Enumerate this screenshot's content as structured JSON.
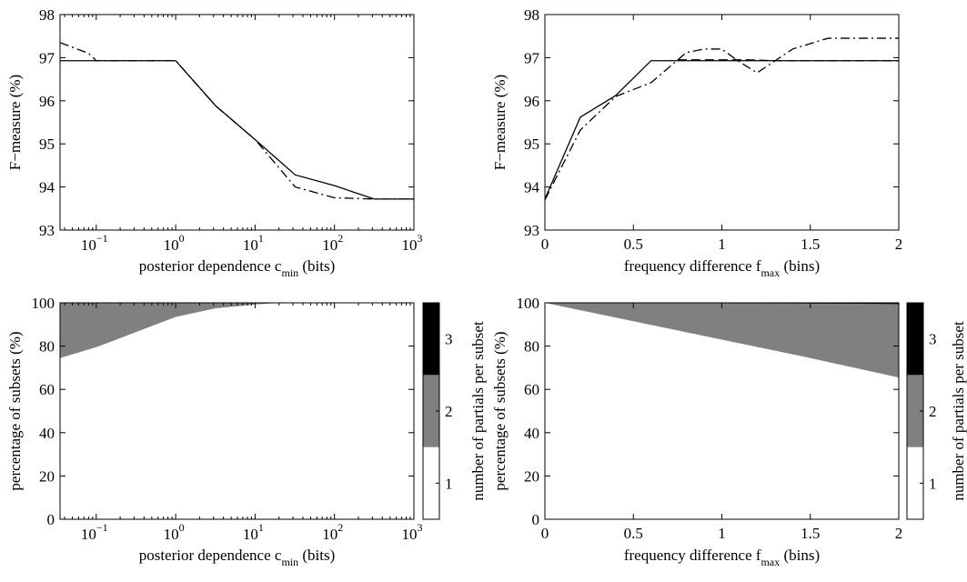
{
  "colors": {
    "frame": "#000000",
    "gray": "#808080",
    "black": "#000000",
    "white": "#ffffff"
  },
  "chart_data": [
    {
      "type": "line",
      "id": "tl",
      "xscale": "log",
      "xlim": [
        0.035,
        1000
      ],
      "ylim": [
        93,
        98
      ],
      "xticks": [
        0.1,
        1,
        10,
        100,
        1000
      ],
      "xtick_labels": [
        {
          "base": "10",
          "exp": "−1"
        },
        {
          "base": "10",
          "exp": "0"
        },
        {
          "base": "10",
          "exp": "1"
        },
        {
          "base": "10",
          "exp": "2"
        },
        {
          "base": "10",
          "exp": "3"
        }
      ],
      "yticks": [
        93,
        94,
        95,
        96,
        97,
        98
      ],
      "ytick_labels": [
        "93",
        "94",
        "95",
        "96",
        "97",
        "98"
      ],
      "xlabel": {
        "main": "posterior dependence c",
        "sub": "min",
        "tail": " (bits)"
      },
      "ylabel": "F−measure (%)",
      "series": [
        {
          "style": "solid",
          "x": [
            0.035,
            1,
            3.2,
            10,
            32,
            100,
            316,
            1000
          ],
          "y": [
            96.93,
            96.93,
            95.88,
            95.1,
            94.28,
            94.03,
            93.72,
            93.72
          ]
        },
        {
          "style": "dashdot",
          "x": [
            0.035,
            0.08,
            0.1,
            1,
            3.2,
            10,
            32,
            100,
            316,
            1000
          ],
          "y": [
            97.35,
            97.1,
            96.93,
            96.93,
            95.88,
            95.1,
            94.0,
            93.75,
            93.72,
            93.72
          ]
        }
      ]
    },
    {
      "type": "line",
      "id": "tr",
      "xscale": "linear",
      "xlim": [
        0,
        2
      ],
      "ylim": [
        93,
        98
      ],
      "xticks": [
        0,
        0.5,
        1,
        1.5,
        2
      ],
      "xtick_labels": [
        "0",
        "0.5",
        "1",
        "1.5",
        "2"
      ],
      "yticks": [
        93,
        94,
        95,
        96,
        97,
        98
      ],
      "ytick_labels": [
        "93",
        "94",
        "95",
        "96",
        "97",
        "98"
      ],
      "xlabel": {
        "main": "frequency difference f",
        "sub": "max",
        "tail": " (bins)"
      },
      "ylabel": "F−measure (%)",
      "series": [
        {
          "style": "solid",
          "x": [
            0,
            0.2,
            0.4,
            0.6,
            0.8,
            1.0,
            1.2,
            1.4,
            1.6,
            1.8,
            2.0
          ],
          "y": [
            93.72,
            95.62,
            96.12,
            96.93,
            96.93,
            96.93,
            96.93,
            96.93,
            96.93,
            96.93,
            96.93
          ]
        },
        {
          "style": "dashed",
          "x": [
            0.75,
            1.15,
            1.3,
            1.95,
            2.0
          ],
          "y": [
            96.95,
            96.95,
            96.93,
            96.93,
            96.93
          ]
        },
        {
          "style": "dashdot",
          "x": [
            0,
            0.2,
            0.4,
            0.6,
            0.8,
            0.9,
            1.0,
            1.1,
            1.2,
            1.4,
            1.6,
            1.8,
            2.0
          ],
          "y": [
            93.7,
            95.32,
            96.1,
            96.42,
            97.12,
            97.2,
            97.2,
            96.9,
            96.65,
            97.2,
            97.45,
            97.45,
            97.45
          ]
        }
      ]
    },
    {
      "type": "area",
      "id": "bl",
      "xscale": "log",
      "xlim": [
        0.035,
        1000
      ],
      "ylim": [
        0,
        100
      ],
      "xticks": [
        0.1,
        1,
        10,
        100,
        1000
      ],
      "xtick_labels": [
        {
          "base": "10",
          "exp": "−1"
        },
        {
          "base": "10",
          "exp": "0"
        },
        {
          "base": "10",
          "exp": "1"
        },
        {
          "base": "10",
          "exp": "2"
        },
        {
          "base": "10",
          "exp": "3"
        }
      ],
      "yticks": [
        0,
        20,
        40,
        60,
        80,
        100
      ],
      "ytick_labels": [
        "0",
        "20",
        "40",
        "60",
        "80",
        "100"
      ],
      "xlabel": {
        "main": "posterior dependence c",
        "sub": "min",
        "tail": " (bits)"
      },
      "ylabel": "percentage of subsets (%)",
      "series": [
        {
          "name": "1",
          "x": [
            0.035,
            0.1,
            1,
            3.2,
            10,
            20,
            1000
          ],
          "y": [
            74.5,
            79.5,
            93.5,
            97.5,
            99.2,
            100,
            100
          ]
        },
        {
          "name": "2",
          "x": [
            0.035,
            1000
          ],
          "y": [
            25.5,
            0
          ]
        },
        {
          "name": "3",
          "x": [
            0.035,
            1000
          ],
          "y": [
            0,
            0
          ]
        }
      ],
      "colorbar": {
        "label": "number of partials per subset",
        "levels": [
          "1",
          "2",
          "3"
        ]
      }
    },
    {
      "type": "area",
      "id": "br",
      "xscale": "linear",
      "xlim": [
        0,
        2
      ],
      "ylim": [
        0,
        100
      ],
      "xticks": [
        0,
        0.5,
        1,
        1.5,
        2
      ],
      "xtick_labels": [
        "0",
        "0.5",
        "1",
        "1.5",
        "2"
      ],
      "yticks": [
        0,
        20,
        40,
        60,
        80,
        100
      ],
      "ytick_labels": [
        "0",
        "20",
        "40",
        "60",
        "80",
        "100"
      ],
      "xlabel": {
        "main": "frequency difference f",
        "sub": "max",
        "tail": " (bins)"
      },
      "ylabel": "percentage of subsets (%)",
      "series": [
        {
          "name": "1",
          "x": [
            0,
            0.5,
            1.0,
            1.5,
            2.0
          ],
          "y": [
            100,
            91.5,
            83,
            74.5,
            65.5
          ]
        },
        {
          "name": "3",
          "x": [
            0,
            1.0,
            1.8,
            2.0
          ],
          "y": [
            100,
            99.8,
            99.6,
            99.4
          ]
        }
      ],
      "colorbar": {
        "label": "number of partials per subset",
        "levels": [
          "1",
          "2",
          "3"
        ]
      }
    }
  ]
}
